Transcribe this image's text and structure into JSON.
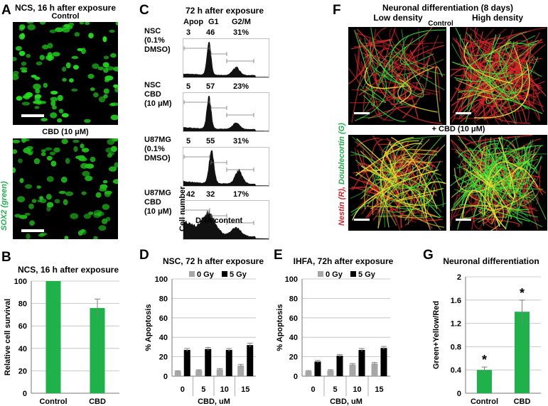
{
  "panels": {
    "A": {
      "letter": "A",
      "title": "NCS, 16 h after exposure",
      "sub_top": "Control",
      "sub_bottom": "CBD (10 μM)",
      "side_label": "SOX2 (green)"
    },
    "B": {
      "letter": "B"
    },
    "C": {
      "letter": "C",
      "title": "72 h after exposure",
      "head_apop": "Apop",
      "head_g1": "G1",
      "head_g2m": "G2/M",
      "xlabel": "DNA content",
      "ylabel": "Cell number",
      "rows": [
        {
          "label_lines": [
            "NSC",
            "(0.1%",
            "DMSO)"
          ],
          "apop": "3",
          "g1": "46",
          "g2m": "31%"
        },
        {
          "label_lines": [
            "NSC",
            "CBD",
            "(10 μM)"
          ],
          "apop": "5",
          "g1": "57",
          "g2m": "23%"
        },
        {
          "label_lines": [
            "U87MG",
            "(0.1%",
            "DMSO)"
          ],
          "apop": "5",
          "g1": "55",
          "g2m": "31%"
        },
        {
          "label_lines": [
            "U87MG",
            "CBD",
            "(10 μM)"
          ],
          "apop": "42",
          "g1": "32",
          "g2m": "17%"
        }
      ]
    },
    "D": {
      "letter": "D"
    },
    "E": {
      "letter": "E"
    },
    "F": {
      "letter": "F",
      "title": "Neuronal differentiation (8 days)",
      "col_low": "Low density",
      "col_high": "High density",
      "row_control": "Control",
      "row_cbd": "+ CBD (10 μM)",
      "side_nestin": "Nestin (R), ",
      "side_dcx": "Doublecortin (G)"
    },
    "G": {
      "letter": "G"
    }
  },
  "colors": {
    "green_bar": "#1fb24a",
    "error": "#808080",
    "gray_bar": "#a6a6a6",
    "black_bar": "#000000",
    "micro_green": "#22e01e",
    "neuron_red": "#d8262a"
  },
  "chart_data": [
    {
      "id": "B",
      "type": "bar",
      "title": "NCS, 16 h after exposure",
      "ylabel": "Relative cell survival",
      "xlabel": "",
      "categories": [
        "Control",
        "CBD"
      ],
      "values": [
        100,
        76
      ],
      "errors": [
        0,
        8
      ],
      "ylim": [
        0,
        100
      ],
      "yticks": [
        0,
        20,
        40,
        60,
        80,
        100
      ],
      "grid": true
    },
    {
      "id": "D",
      "type": "bar",
      "title": "NSC, 72 h after exposure",
      "ylabel": "% Apoptosis",
      "xlabel": "CBD, uM",
      "categories": [
        "0",
        "5",
        "10",
        "15"
      ],
      "series": [
        {
          "name": "0 Gy",
          "values": [
            5,
            6,
            7,
            11
          ],
          "errors": [
            0.6,
            0.6,
            0.8,
            1.2
          ]
        },
        {
          "name": "5 Gy",
          "values": [
            27,
            28,
            27,
            32
          ],
          "errors": [
            1.5,
            1.6,
            1.4,
            2.0
          ]
        }
      ],
      "ylim": [
        0,
        100
      ],
      "yticks": [
        0,
        20,
        40,
        60,
        80,
        100
      ],
      "grid": true,
      "legend": "top"
    },
    {
      "id": "E",
      "type": "bar",
      "title": "IHFA, 72h after exposure",
      "ylabel": "% Apoptosis",
      "xlabel": "CBD, uM",
      "categories": [
        "0",
        "5",
        "10",
        "15"
      ],
      "series": [
        {
          "name": "0 Gy",
          "values": [
            5,
            6,
            12,
            13
          ],
          "errors": [
            0.7,
            0.7,
            1.0,
            1.1
          ]
        },
        {
          "name": "5 Gy",
          "values": [
            15,
            21,
            27,
            29
          ],
          "errors": [
            1.2,
            1.3,
            1.5,
            1.6
          ]
        }
      ],
      "ylim": [
        0,
        100
      ],
      "yticks": [
        0,
        20,
        40,
        60,
        80,
        100
      ],
      "grid": true,
      "legend": "top"
    },
    {
      "id": "G",
      "type": "bar",
      "title": "Neuronal differentiation",
      "ylabel": "Green+Yellow/Red",
      "xlabel": "",
      "categories": [
        "Control",
        "CBD"
      ],
      "values": [
        0.4,
        1.4
      ],
      "errors": [
        0.05,
        0.2
      ],
      "annotations": [
        "*",
        "*"
      ],
      "ylim": [
        0,
        2
      ],
      "yticks": [
        "0",
        "0.4",
        "0.8",
        "1.2",
        "1.6",
        "2"
      ],
      "grid": true
    }
  ]
}
